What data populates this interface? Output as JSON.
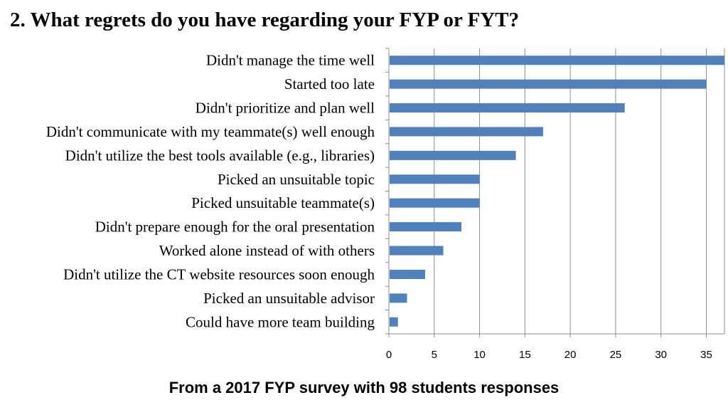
{
  "title": "2.  What regrets do you have regarding your FYP or FYT?",
  "caption": "From a 2017 FYP survey with 98 students responses",
  "colors": {
    "bar": "#4F81BD",
    "grid": "#8C8C8C",
    "axis": "#8C8C8C"
  },
  "chart_data": {
    "type": "bar",
    "orientation": "horizontal",
    "title": "2.  What regrets do you have regarding your FYP or FYT?",
    "xlabel": "",
    "ylabel": "",
    "categories": [
      "Didn't manage the time well",
      "Started too late",
      "Didn't prioritize and plan well",
      "Didn't communicate with my teammate(s) well enough",
      "Didn't utilize the best tools available (e.g., libraries)",
      "Picked an unsuitable topic",
      "Picked unsuitable teammate(s)",
      "Didn't prepare enough for the oral presentation",
      "Worked alone instead of with others",
      "Didn't utilize the CT website resources soon enough",
      "Picked an unsuitable advisor",
      "Could have more team building"
    ],
    "values": [
      37,
      35,
      26,
      17,
      14,
      10,
      10,
      8,
      6,
      4,
      2,
      1
    ],
    "xlim": [
      0,
      37
    ],
    "xticks": [
      "0",
      "5",
      "10",
      "15",
      "20",
      "25",
      "30",
      "35"
    ],
    "grid": true,
    "legend": "none"
  }
}
